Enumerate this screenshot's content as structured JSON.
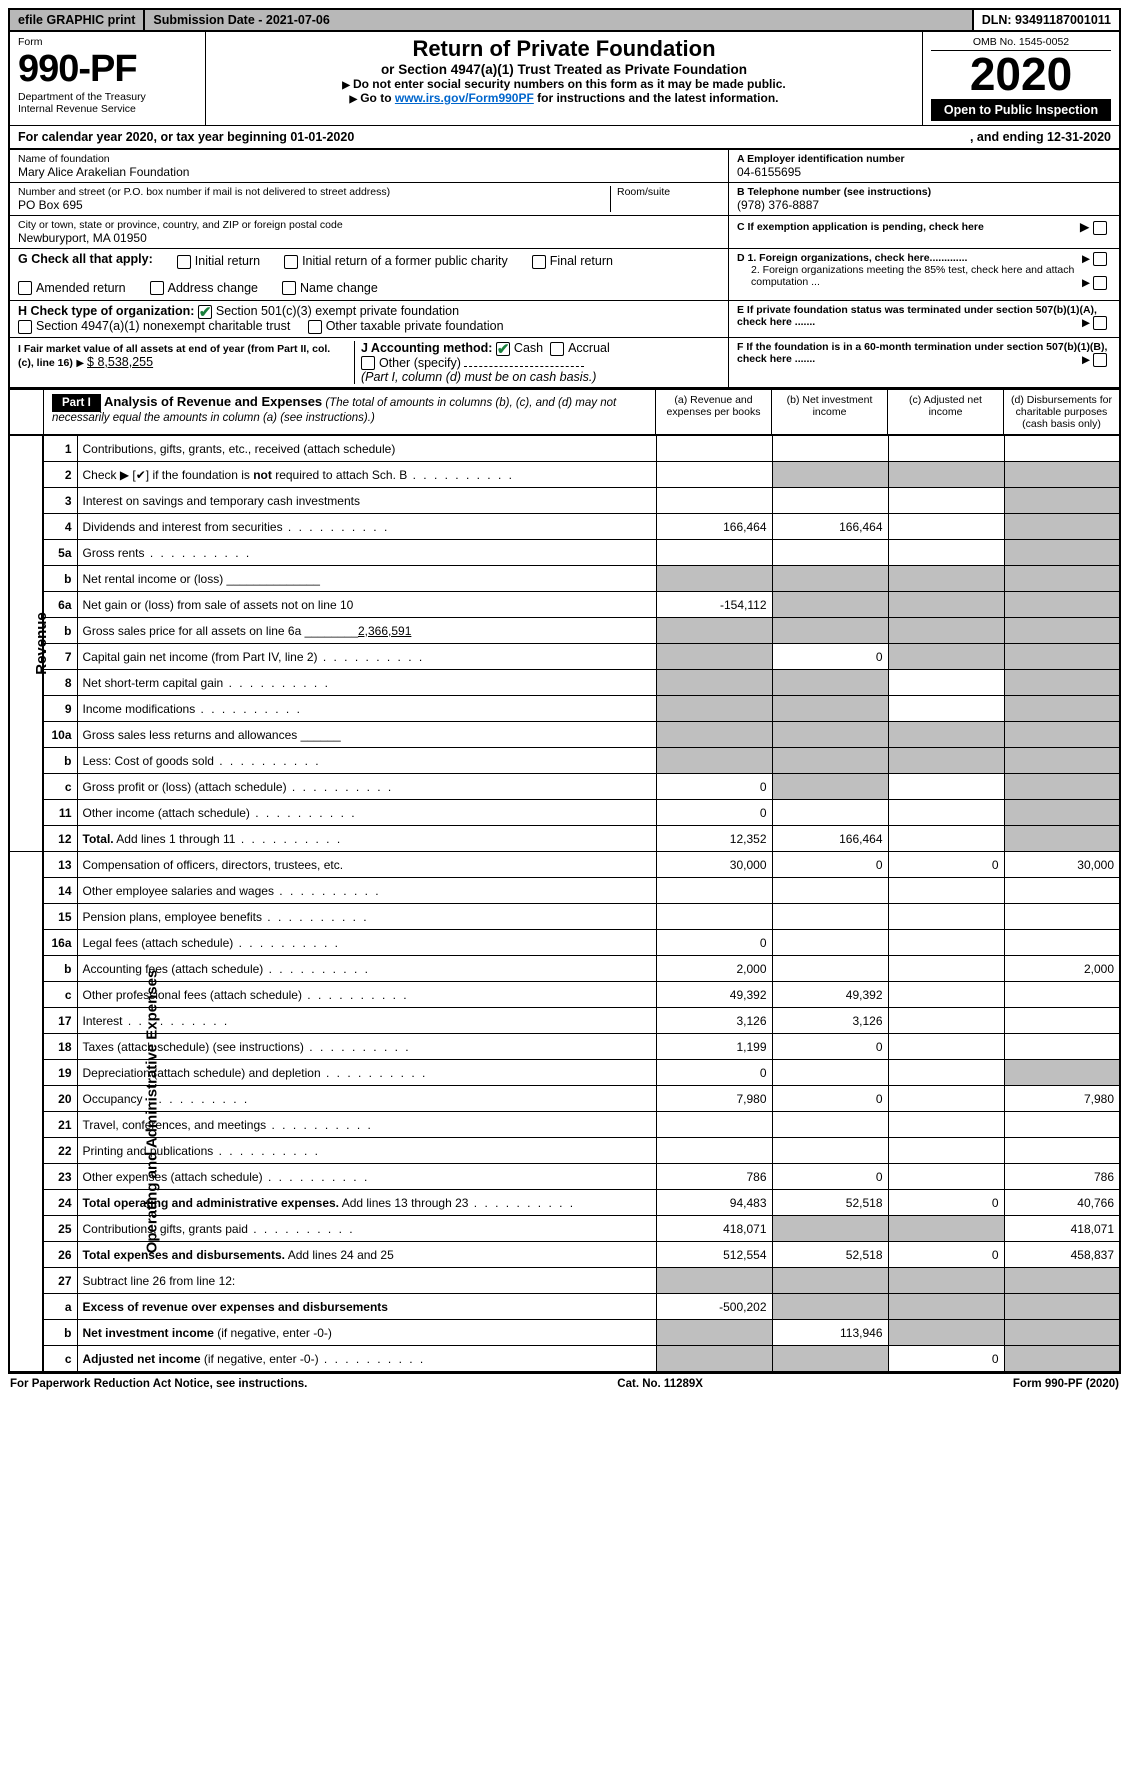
{
  "top": {
    "efile": "efile GRAPHIC print",
    "submission": "Submission Date - 2021-07-06",
    "dln": "DLN: 93491187001011"
  },
  "header": {
    "form_word": "Form",
    "form_no": "990-PF",
    "dept": "Department of the Treasury",
    "irs": "Internal Revenue Service",
    "title": "Return of Private Foundation",
    "subtitle": "or Section 4947(a)(1) Trust Treated as Private Foundation",
    "instr1": "Do not enter social security numbers on this form as it may be made public.",
    "instr2_pre": "Go to ",
    "instr2_link": "www.irs.gov/Form990PF",
    "instr2_post": " for instructions and the latest information.",
    "omb": "OMB No. 1545-0052",
    "year": "2020",
    "open": "Open to Public Inspection"
  },
  "cal": {
    "left": "For calendar year 2020, or tax year beginning 01-01-2020",
    "right": ", and ending 12-31-2020"
  },
  "id": {
    "name_lbl": "Name of foundation",
    "name": "Mary Alice Arakelian Foundation",
    "addr_lbl": "Number and street (or P.O. box number if mail is not delivered to street address)",
    "addr": "PO Box 695",
    "room_lbl": "Room/suite",
    "city_lbl": "City or town, state or province, country, and ZIP or foreign postal code",
    "city": "Newburyport, MA  01950",
    "ein_lbl": "A Employer identification number",
    "ein": "04-6155695",
    "tel_lbl": "B Telephone number (see instructions)",
    "tel": "(978) 376-8887",
    "c_lbl": "C If exemption application is pending, check here",
    "d1": "D 1. Foreign organizations, check here.............",
    "d2": "2. Foreign organizations meeting the 85% test, check here and attach computation ...",
    "e": "E If private foundation status was terminated under section 507(b)(1)(A), check here .......",
    "f": "F If the foundation is in a 60-month termination under section 507(b)(1)(B), check here ......."
  },
  "g": {
    "label": "G Check all that apply:",
    "opts": [
      "Initial return",
      "Initial return of a former public charity",
      "Final return",
      "Amended return",
      "Address change",
      "Name change"
    ]
  },
  "h": {
    "label": "H Check type of organization:",
    "o1": "Section 501(c)(3) exempt private foundation",
    "o2": "Section 4947(a)(1) nonexempt charitable trust",
    "o3": "Other taxable private foundation"
  },
  "i": {
    "label": "I Fair market value of all assets at end of year (from Part II, col. (c), line 16)",
    "val": "$  8,538,255"
  },
  "j": {
    "label": "J Accounting method:",
    "cash": "Cash",
    "accr": "Accrual",
    "other": "Other (specify)",
    "note": "(Part I, column (d) must be on cash basis.)"
  },
  "part1": {
    "tag": "Part I",
    "title": "Analysis of Revenue and Expenses",
    "note": "(The total of amounts in columns (b), (c), and (d) may not necessarily equal the amounts in column (a) (see instructions).)",
    "col_a": "(a)   Revenue and expenses per books",
    "col_b": "(b)  Net investment income",
    "col_c": "(c)  Adjusted net income",
    "col_d": "(d)  Disbursements for charitable purposes (cash basis only)"
  },
  "revenue_label": "Revenue",
  "expense_label": "Operating and Administrative Expenses",
  "rows": [
    {
      "n": "1",
      "d": "Contributions, gifts, grants, etc., received (attach schedule)",
      "a": "",
      "b": "",
      "c": "",
      "ds": "",
      "bS": false,
      "cS": false,
      "dS": false
    },
    {
      "n": "2",
      "d": "Check ▶ [✔] if the foundation is <b>not</b> required to attach Sch. B",
      "dots": true,
      "a": "",
      "b": "",
      "c": "",
      "ds": "",
      "bS": true,
      "cS": true,
      "dS": true
    },
    {
      "n": "3",
      "d": "Interest on savings and temporary cash investments",
      "a": "",
      "b": "",
      "c": "",
      "ds": "",
      "bS": false,
      "cS": false,
      "dS": true
    },
    {
      "n": "4",
      "d": "Dividends and interest from securities",
      "dots": true,
      "a": "166,464",
      "b": "166,464",
      "c": "",
      "ds": "",
      "bS": false,
      "cS": false,
      "dS": true
    },
    {
      "n": "5a",
      "d": "Gross rents",
      "dots": true,
      "a": "",
      "b": "",
      "c": "",
      "ds": "",
      "bS": false,
      "cS": false,
      "dS": true
    },
    {
      "n": "b",
      "d": "Net rental income or (loss)  ______________",
      "a": "",
      "b": "",
      "c": "",
      "ds": "",
      "aS": true,
      "bS": true,
      "cS": true,
      "dS": true
    },
    {
      "n": "6a",
      "d": "Net gain or (loss) from sale of assets not on line 10",
      "a": "-154,112",
      "b": "",
      "c": "",
      "ds": "",
      "bS": true,
      "cS": true,
      "dS": true
    },
    {
      "n": "b",
      "d": "Gross sales price for all assets on line 6a ________<u>2,366,591</u>",
      "a": "",
      "b": "",
      "c": "",
      "ds": "",
      "aS": true,
      "bS": true,
      "cS": true,
      "dS": true
    },
    {
      "n": "7",
      "d": "Capital gain net income (from Part IV, line 2)",
      "dots": true,
      "a": "",
      "b": "0",
      "c": "",
      "ds": "",
      "aS": true,
      "bS": false,
      "cS": true,
      "dS": true
    },
    {
      "n": "8",
      "d": "Net short-term capital gain",
      "dots": true,
      "a": "",
      "b": "",
      "c": "",
      "ds": "",
      "aS": true,
      "bS": true,
      "cS": false,
      "dS": true
    },
    {
      "n": "9",
      "d": "Income modifications",
      "dots": true,
      "a": "",
      "b": "",
      "c": "",
      "ds": "",
      "aS": true,
      "bS": true,
      "cS": false,
      "dS": true
    },
    {
      "n": "10a",
      "d": "Gross sales less returns and allowances  ______",
      "a": "",
      "b": "",
      "c": "",
      "ds": "",
      "aS": true,
      "bS": true,
      "cS": true,
      "dS": true
    },
    {
      "n": "b",
      "d": "Less: Cost of goods sold",
      "dots": true,
      "a": "",
      "b": "",
      "c": "",
      "ds": "",
      "aS": true,
      "bS": true,
      "cS": true,
      "dS": true
    },
    {
      "n": "c",
      "d": "Gross profit or (loss) (attach schedule)",
      "dots": true,
      "a": "0",
      "b": "",
      "c": "",
      "ds": "",
      "bS": true,
      "cS": false,
      "dS": true
    },
    {
      "n": "11",
      "d": "Other income (attach schedule)",
      "dots": true,
      "a": "0",
      "b": "",
      "c": "",
      "ds": "",
      "bS": false,
      "cS": false,
      "dS": true
    },
    {
      "n": "12",
      "d": "<b>Total.</b> Add lines 1 through 11",
      "dots": true,
      "a": "12,352",
      "b": "166,464",
      "c": "",
      "ds": "",
      "bS": false,
      "cS": false,
      "dS": true
    }
  ],
  "exp_rows": [
    {
      "n": "13",
      "d": "Compensation of officers, directors, trustees, etc.",
      "a": "30,000",
      "b": "0",
      "c": "0",
      "ds": "30,000"
    },
    {
      "n": "14",
      "d": "Other employee salaries and wages",
      "dots": true,
      "a": "",
      "b": "",
      "c": "",
      "ds": ""
    },
    {
      "n": "15",
      "d": "Pension plans, employee benefits",
      "dots": true,
      "a": "",
      "b": "",
      "c": "",
      "ds": ""
    },
    {
      "n": "16a",
      "d": "Legal fees (attach schedule)",
      "dots": true,
      "a": "0",
      "b": "",
      "c": "",
      "ds": ""
    },
    {
      "n": "b",
      "d": "Accounting fees (attach schedule)",
      "dots": true,
      "a": "2,000",
      "b": "",
      "c": "",
      "ds": "2,000"
    },
    {
      "n": "c",
      "d": "Other professional fees (attach schedule)",
      "dots": true,
      "a": "49,392",
      "b": "49,392",
      "c": "",
      "ds": ""
    },
    {
      "n": "17",
      "d": "Interest",
      "dots": true,
      "a": "3,126",
      "b": "3,126",
      "c": "",
      "ds": ""
    },
    {
      "n": "18",
      "d": "Taxes (attach schedule) (see instructions)",
      "dots": true,
      "a": "1,199",
      "b": "0",
      "c": "",
      "ds": ""
    },
    {
      "n": "19",
      "d": "Depreciation (attach schedule) and depletion",
      "dots": true,
      "a": "0",
      "b": "",
      "c": "",
      "ds": "",
      "dS": true
    },
    {
      "n": "20",
      "d": "Occupancy",
      "dots": true,
      "a": "7,980",
      "b": "0",
      "c": "",
      "ds": "7,980"
    },
    {
      "n": "21",
      "d": "Travel, conferences, and meetings",
      "dots": true,
      "a": "",
      "b": "",
      "c": "",
      "ds": ""
    },
    {
      "n": "22",
      "d": "Printing and publications",
      "dots": true,
      "a": "",
      "b": "",
      "c": "",
      "ds": ""
    },
    {
      "n": "23",
      "d": "Other expenses (attach schedule)",
      "dots": true,
      "a": "786",
      "b": "0",
      "c": "",
      "ds": "786"
    },
    {
      "n": "24",
      "d": "<b>Total operating and administrative expenses.</b> Add lines 13 through 23",
      "dots": true,
      "a": "94,483",
      "b": "52,518",
      "c": "0",
      "ds": "40,766"
    },
    {
      "n": "25",
      "d": "Contributions, gifts, grants paid",
      "dots": true,
      "a": "418,071",
      "b": "",
      "c": "",
      "ds": "418,071",
      "bS": true,
      "cS": true
    },
    {
      "n": "26",
      "d": "<b>Total expenses and disbursements.</b> Add lines 24 and 25",
      "a": "512,554",
      "b": "52,518",
      "c": "0",
      "ds": "458,837"
    },
    {
      "n": "27",
      "d": "Subtract line 26 from line 12:",
      "a": "",
      "b": "",
      "c": "",
      "ds": "",
      "aS": true,
      "bS": true,
      "cS": true,
      "dS": true
    },
    {
      "n": "a",
      "d": "<b>Excess of revenue over expenses and disbursements</b>",
      "a": "-500,202",
      "b": "",
      "c": "",
      "ds": "",
      "bS": true,
      "cS": true,
      "dS": true
    },
    {
      "n": "b",
      "d": "<b>Net investment income</b> (if negative, enter -0-)",
      "a": "",
      "b": "113,946",
      "c": "",
      "ds": "",
      "aS": true,
      "cS": true,
      "dS": true
    },
    {
      "n": "c",
      "d": "<b>Adjusted net income</b> (if negative, enter -0-)",
      "dots": true,
      "a": "",
      "b": "",
      "c": "0",
      "ds": "",
      "aS": true,
      "bS": true,
      "dS": true
    }
  ],
  "footer": {
    "l": "For Paperwork Reduction Act Notice, see instructions.",
    "c": "Cat. No. 11289X",
    "r": "Form 990-PF (2020)"
  },
  "colors": {
    "shade": "#bfbfbf",
    "green": "#1a7f3c"
  }
}
